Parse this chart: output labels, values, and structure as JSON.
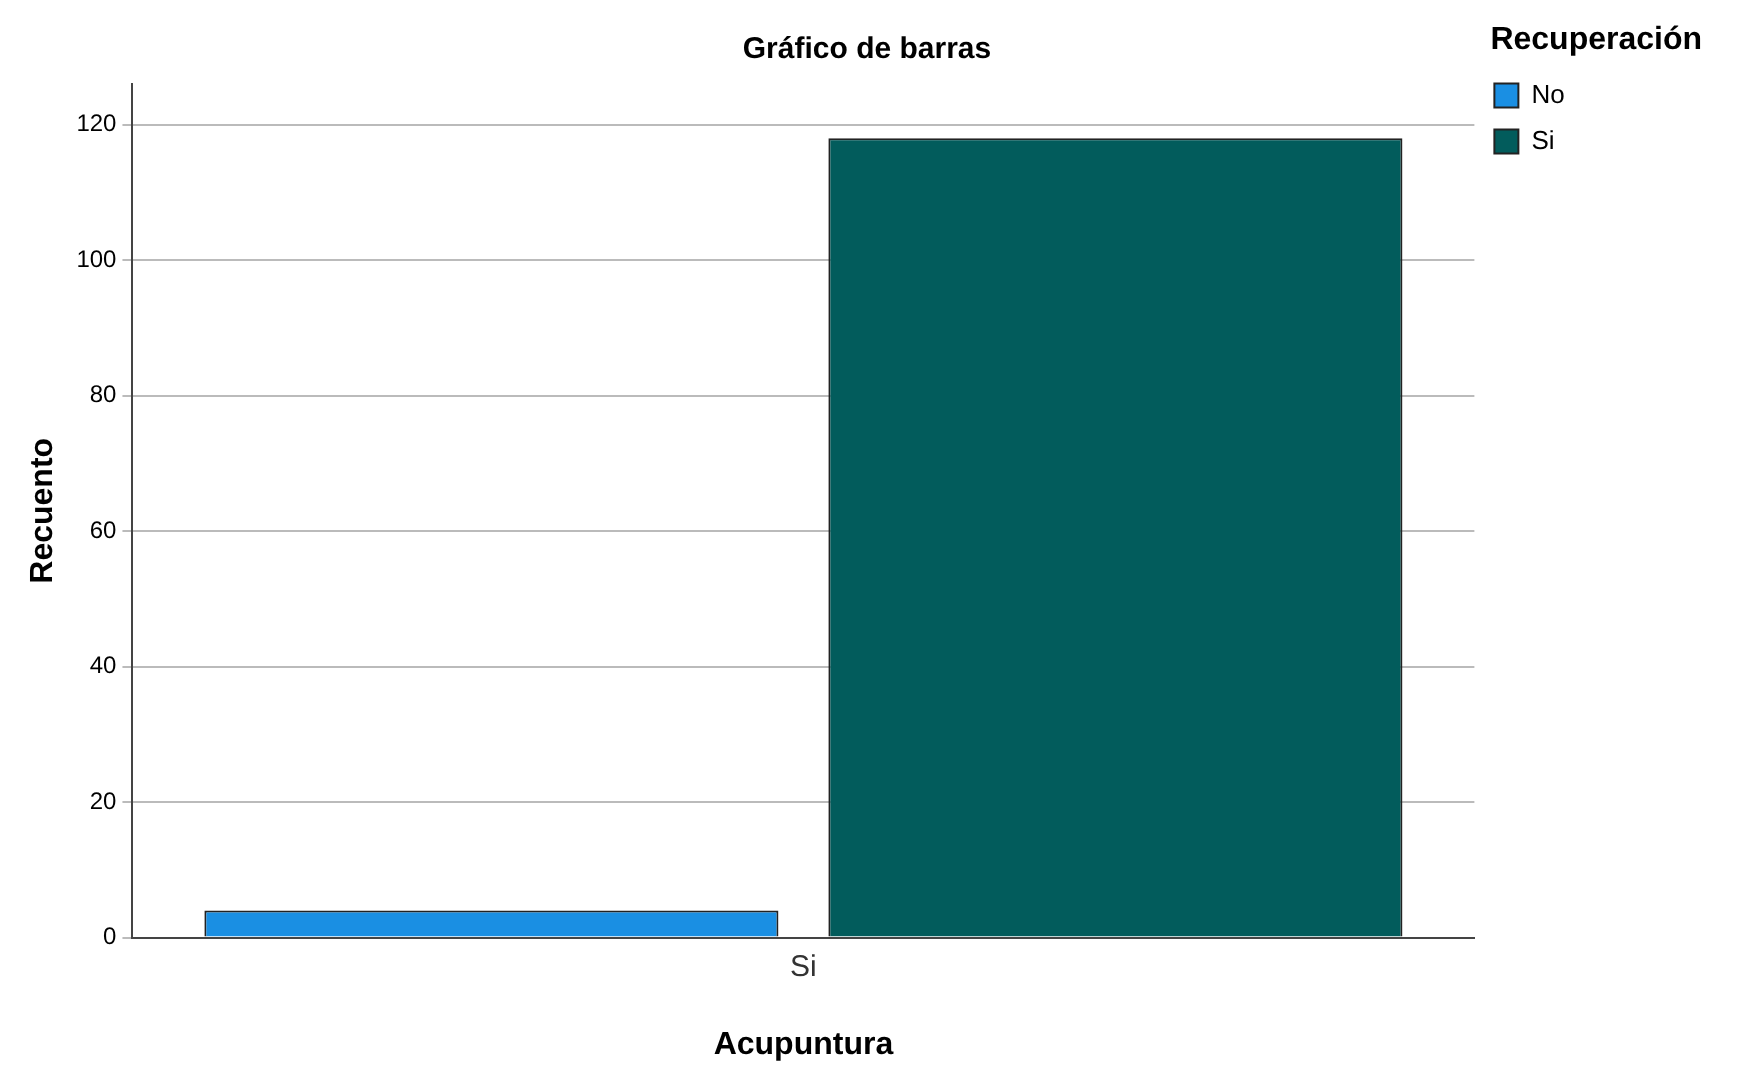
{
  "chart_data": {
    "type": "bar",
    "title": "Gráfico de barras",
    "xlabel": "Acupuntura",
    "ylabel": "Recuento",
    "legend_title": "Recuperación",
    "categories": [
      "Si"
    ],
    "series": [
      {
        "name": "No",
        "color": "#1a8fe3",
        "values": [
          4
        ]
      },
      {
        "name": "Si",
        "color": "#025c5c",
        "values": [
          118
        ]
      }
    ],
    "ylim": [
      0,
      126
    ],
    "yticks": [
      0,
      20,
      40,
      60,
      80,
      100,
      120
    ],
    "grid": "y",
    "legend": "top right"
  }
}
